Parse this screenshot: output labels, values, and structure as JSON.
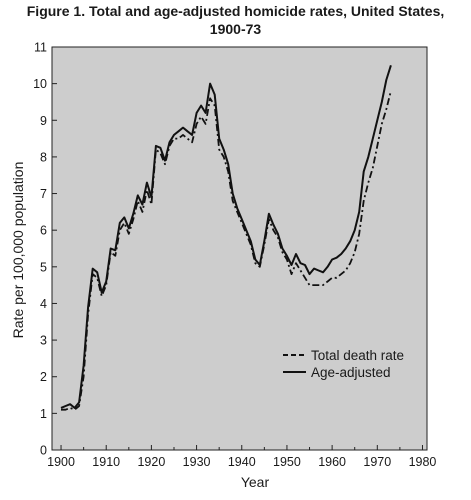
{
  "chart_data": {
    "type": "line",
    "title_line1": "Figure 1. Total and age-adjusted homicide rates, United States,",
    "title_line2": "1900-73",
    "xlabel": "Year",
    "ylabel": "Rate per 100,000 population",
    "xlim": [
      1898,
      1981
    ],
    "ylim": [
      0,
      11
    ],
    "xticks": [
      1900,
      1910,
      1920,
      1930,
      1940,
      1950,
      1960,
      1970,
      1980
    ],
    "yticks": [
      0,
      1,
      2,
      3,
      4,
      5,
      6,
      7,
      8,
      9,
      10,
      11
    ],
    "legend_position": "lower-right",
    "colors": {
      "plot_bg": "#cdcdcd",
      "line": "#111111"
    },
    "series": [
      {
        "name": "Total death rate",
        "style": "dashed",
        "x": [
          1900,
          1901,
          1902,
          1903,
          1904,
          1905,
          1906,
          1907,
          1908,
          1909,
          1910,
          1911,
          1912,
          1913,
          1914,
          1915,
          1916,
          1917,
          1918,
          1919,
          1920,
          1921,
          1922,
          1923,
          1924,
          1925,
          1926,
          1927,
          1928,
          1929,
          1930,
          1931,
          1932,
          1933,
          1934,
          1935,
          1936,
          1937,
          1938,
          1939,
          1940,
          1941,
          1942,
          1943,
          1944,
          1945,
          1946,
          1947,
          1948,
          1949,
          1950,
          1951,
          1952,
          1953,
          1954,
          1955,
          1956,
          1957,
          1958,
          1959,
          1960,
          1961,
          1962,
          1963,
          1964,
          1965,
          1966,
          1967,
          1968,
          1969,
          1970,
          1971,
          1972,
          1973
        ],
        "values": [
          1.1,
          1.1,
          1.15,
          1.1,
          1.2,
          2.0,
          3.7,
          4.8,
          4.7,
          4.2,
          4.5,
          5.4,
          5.3,
          6.0,
          6.2,
          5.9,
          6.3,
          6.8,
          6.5,
          7.1,
          6.7,
          8.2,
          8.1,
          7.8,
          8.3,
          8.5,
          8.5,
          8.6,
          8.5,
          8.4,
          8.9,
          9.1,
          8.9,
          9.6,
          9.4,
          8.2,
          8.0,
          7.6,
          6.8,
          6.5,
          6.2,
          5.9,
          5.6,
          5.1,
          5.0,
          5.6,
          6.3,
          6.0,
          5.8,
          5.4,
          5.2,
          4.8,
          5.1,
          4.9,
          4.7,
          4.5,
          4.5,
          4.5,
          4.5,
          4.6,
          4.7,
          4.7,
          4.8,
          4.9,
          5.1,
          5.4,
          5.9,
          6.8,
          7.3,
          7.7,
          8.3,
          8.9,
          9.3,
          9.8
        ]
      },
      {
        "name": "Age-adjusted",
        "style": "solid",
        "x": [
          1900,
          1901,
          1902,
          1903,
          1904,
          1905,
          1906,
          1907,
          1908,
          1909,
          1910,
          1911,
          1912,
          1913,
          1914,
          1915,
          1916,
          1917,
          1918,
          1919,
          1920,
          1921,
          1922,
          1923,
          1924,
          1925,
          1926,
          1927,
          1928,
          1929,
          1930,
          1931,
          1932,
          1933,
          1934,
          1935,
          1936,
          1937,
          1938,
          1939,
          1940,
          1941,
          1942,
          1943,
          1944,
          1945,
          1946,
          1947,
          1948,
          1949,
          1950,
          1951,
          1952,
          1953,
          1954,
          1955,
          1956,
          1957,
          1958,
          1959,
          1960,
          1961,
          1962,
          1963,
          1964,
          1965,
          1966,
          1967,
          1968,
          1969,
          1970,
          1971,
          1972,
          1973
        ],
        "values": [
          1.15,
          1.2,
          1.25,
          1.15,
          1.3,
          2.3,
          3.9,
          4.95,
          4.85,
          4.3,
          4.6,
          5.5,
          5.45,
          6.2,
          6.35,
          6.05,
          6.45,
          6.95,
          6.7,
          7.3,
          6.9,
          8.3,
          8.25,
          7.9,
          8.4,
          8.6,
          8.7,
          8.8,
          8.7,
          8.6,
          9.2,
          9.4,
          9.2,
          10.0,
          9.7,
          8.5,
          8.2,
          7.8,
          7.0,
          6.6,
          6.3,
          6.0,
          5.7,
          5.2,
          5.05,
          5.7,
          6.45,
          6.15,
          5.9,
          5.5,
          5.3,
          5.05,
          5.35,
          5.1,
          5.05,
          4.8,
          4.95,
          4.9,
          4.85,
          5.0,
          5.2,
          5.25,
          5.35,
          5.5,
          5.7,
          6.0,
          6.5,
          7.6,
          8.0,
          8.5,
          9.0,
          9.5,
          10.1,
          10.5
        ]
      }
    ]
  }
}
